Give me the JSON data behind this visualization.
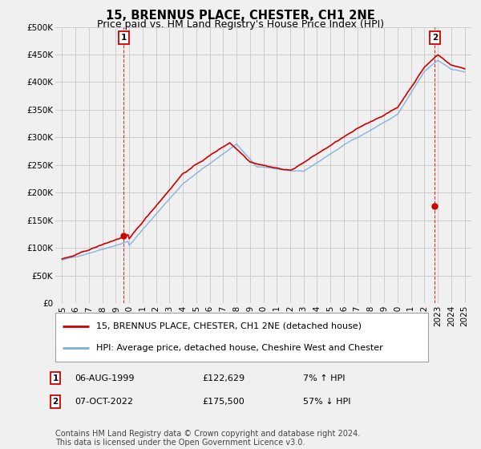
{
  "title": "15, BRENNUS PLACE, CHESTER, CH1 2NE",
  "subtitle": "Price paid vs. HM Land Registry's House Price Index (HPI)",
  "ylabel_ticks": [
    "£0",
    "£50K",
    "£100K",
    "£150K",
    "£200K",
    "£250K",
    "£300K",
    "£350K",
    "£400K",
    "£450K",
    "£500K"
  ],
  "ytick_values": [
    0,
    50000,
    100000,
    150000,
    200000,
    250000,
    300000,
    350000,
    400000,
    450000,
    500000
  ],
  "ylim": [
    0,
    500000
  ],
  "xlim_start": 1994.5,
  "xlim_end": 2025.5,
  "background_color": "#f0f0f0",
  "plot_bg_color": "#f0f0f0",
  "grid_color": "#cccccc",
  "hpi_line_color": "#7aaddc",
  "price_line_color": "#cc0000",
  "marker1_date": 1999.58,
  "marker1_price": 122629,
  "marker2_date": 2022.77,
  "marker2_price": 175500,
  "legend_label1": "15, BRENNUS PLACE, CHESTER, CH1 2NE (detached house)",
  "legend_label2": "HPI: Average price, detached house, Cheshire West and Chester",
  "annotation1": [
    "1",
    "06-AUG-1999",
    "£122,629",
    "7% ↑ HPI"
  ],
  "annotation2": [
    "2",
    "07-OCT-2022",
    "£175,500",
    "57% ↓ HPI"
  ],
  "footer": "Contains HM Land Registry data © Crown copyright and database right 2024.\nThis data is licensed under the Open Government Licence v3.0.",
  "title_fontsize": 10.5,
  "subtitle_fontsize": 9,
  "tick_fontsize": 7.5,
  "legend_fontsize": 8,
  "annotation_fontsize": 8,
  "footer_fontsize": 7
}
